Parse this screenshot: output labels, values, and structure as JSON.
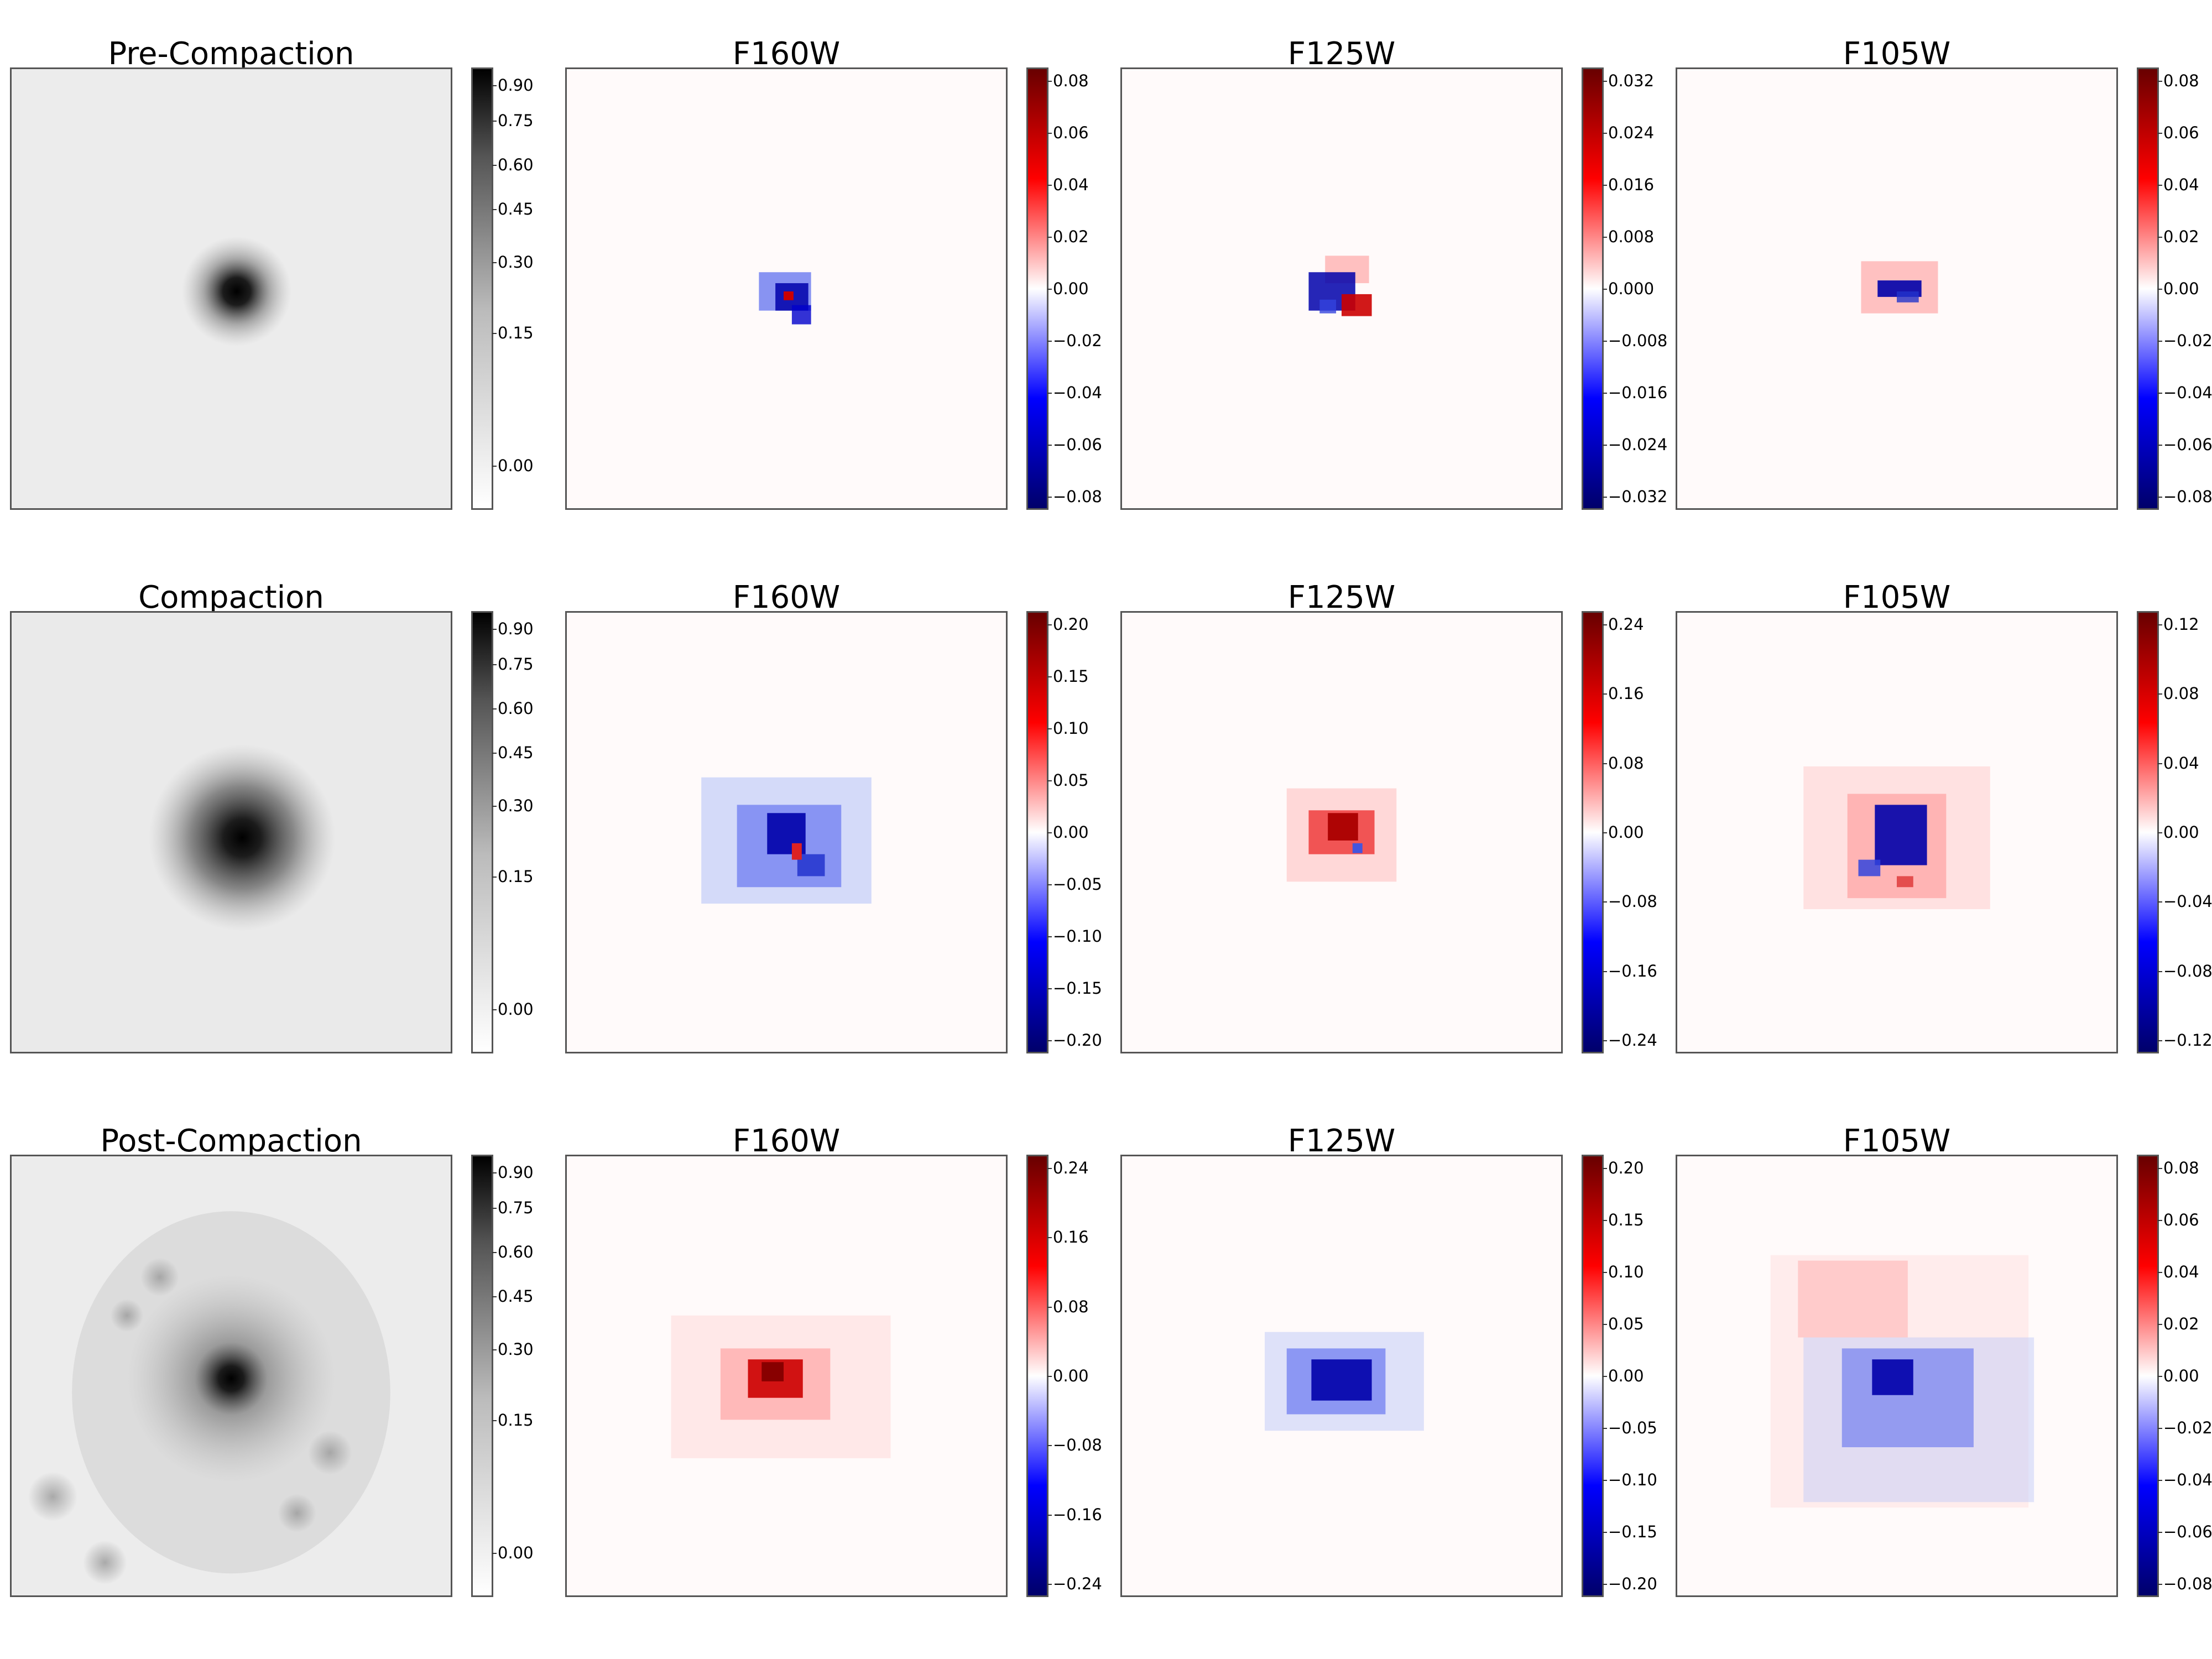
{
  "figure": {
    "rows": [
      {
        "row_title": "Pre-Compaction",
        "mosaic_colorbar_ticks": [
          "0.90",
          "0.75",
          "0.60",
          "0.45",
          "0.30",
          "0.15",
          "0.00"
        ],
        "filters": [
          {
            "title": "F160W",
            "colorbar_ticks": [
              "0.08",
              "0.06",
              "0.04",
              "0.02",
              "0.00",
              "−0.02",
              "−0.04",
              "−0.06",
              "−0.08"
            ]
          },
          {
            "title": "F125W",
            "colorbar_ticks": [
              "0.032",
              "0.024",
              "0.016",
              "0.008",
              "0.000",
              "−0.008",
              "−0.016",
              "−0.024",
              "−0.032"
            ]
          },
          {
            "title": "F105W",
            "colorbar_ticks": [
              "0.08",
              "0.06",
              "0.04",
              "0.02",
              "0.00",
              "−0.02",
              "−0.04",
              "−0.06",
              "−0.08"
            ]
          }
        ]
      },
      {
        "row_title": "Compaction",
        "mosaic_colorbar_ticks": [
          "0.90",
          "0.75",
          "0.60",
          "0.45",
          "0.30",
          "0.15",
          "0.00"
        ],
        "filters": [
          {
            "title": "F160W",
            "colorbar_ticks": [
              "0.20",
              "0.15",
              "0.10",
              "0.05",
              "0.00",
              "−0.05",
              "−0.10",
              "−0.15",
              "−0.20"
            ]
          },
          {
            "title": "F125W",
            "colorbar_ticks": [
              "0.24",
              "0.16",
              "0.08",
              "0.00",
              "−0.08",
              "−0.16",
              "−0.24"
            ]
          },
          {
            "title": "F105W",
            "colorbar_ticks": [
              "0.12",
              "0.08",
              "0.04",
              "0.00",
              "−0.04",
              "−0.08",
              "−0.12"
            ]
          }
        ]
      },
      {
        "row_title": "Post-Compaction",
        "mosaic_colorbar_ticks": [
          "0.90",
          "0.75",
          "0.60",
          "0.45",
          "0.30",
          "0.15",
          "0.00"
        ],
        "filters": [
          {
            "title": "F160W",
            "colorbar_ticks": [
              "0.24",
              "0.16",
              "0.08",
              "0.00",
              "−0.08",
              "−0.16",
              "−0.24"
            ]
          },
          {
            "title": "F125W",
            "colorbar_ticks": [
              "0.20",
              "0.15",
              "0.10",
              "0.05",
              "0.00",
              "−0.05",
              "−0.10",
              "−0.15",
              "−0.20"
            ]
          },
          {
            "title": "F105W",
            "colorbar_ticks": [
              "0.08",
              "0.06",
              "0.04",
              "0.02",
              "0.00",
              "−0.02",
              "−0.04",
              "−0.06",
              "−0.08"
            ]
          }
        ]
      }
    ],
    "colors": {
      "positive": "#cc0000",
      "negative": "#0000cc",
      "galaxy": "#000000",
      "background": "#ffffff"
    }
  }
}
